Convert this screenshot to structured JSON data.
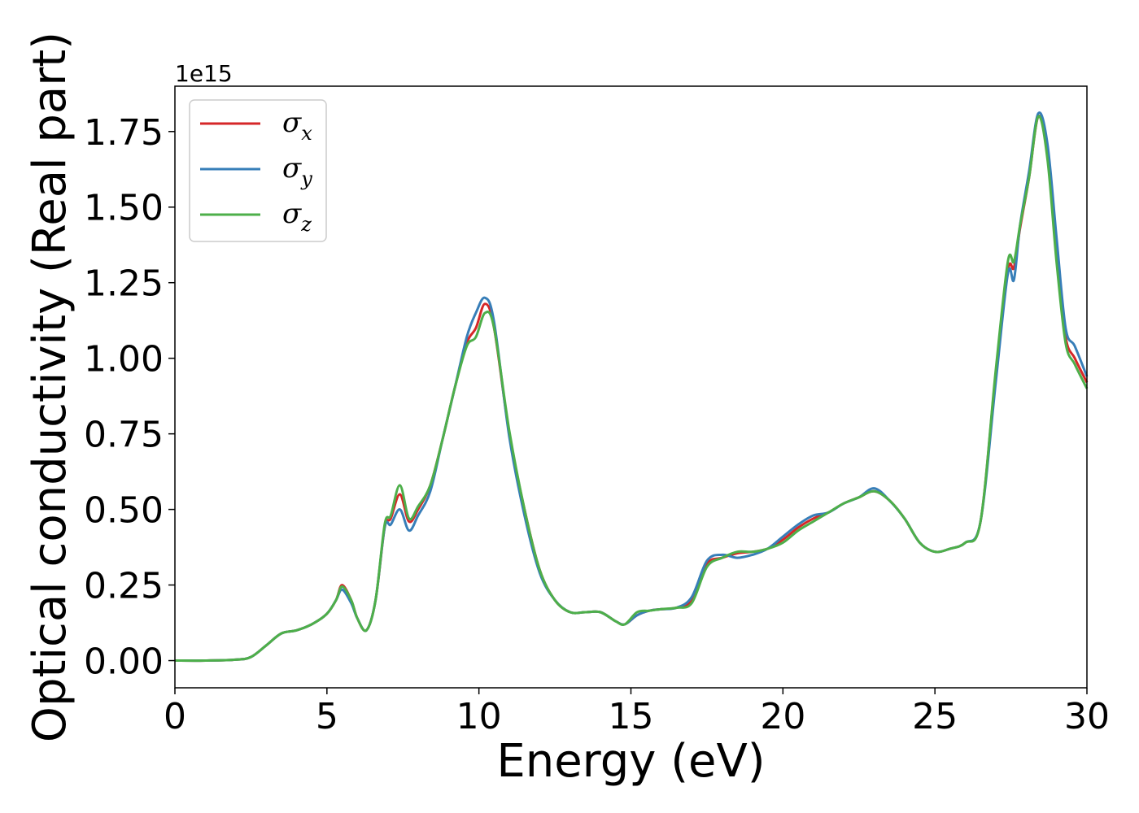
{
  "chart_data": {
    "type": "line",
    "title": "",
    "xlabel": "Energy (eV)",
    "ylabel": "Optical conductivity (Real part)",
    "y_offset_label": "1e15",
    "xlim": [
      0,
      30
    ],
    "ylim": [
      -0.09,
      1.9
    ],
    "x_ticks": [
      0,
      5,
      10,
      15,
      20,
      25,
      30
    ],
    "x_tick_labels": [
      "0",
      "5",
      "10",
      "15",
      "20",
      "25",
      "30"
    ],
    "y_ticks": [
      0.0,
      0.25,
      0.5,
      0.75,
      1.0,
      1.25,
      1.5,
      1.75
    ],
    "y_tick_labels": [
      "0.00",
      "0.25",
      "0.50",
      "0.75",
      "1.00",
      "1.25",
      "1.50",
      "1.75"
    ],
    "grid": false,
    "legend_position": "top-left",
    "x": [
      0,
      1,
      2,
      2.5,
      3,
      3.5,
      4,
      4.5,
      5,
      5.3,
      5.5,
      5.8,
      6.0,
      6.3,
      6.6,
      6.9,
      7.1,
      7.4,
      7.7,
      8.0,
      8.4,
      8.8,
      9.2,
      9.6,
      9.9,
      10.2,
      10.5,
      11.0,
      11.5,
      12.0,
      12.5,
      13.0,
      13.5,
      14.0,
      14.5,
      14.8,
      15.2,
      15.6,
      16.0,
      16.5,
      17.0,
      17.5,
      18.0,
      18.5,
      19.0,
      19.5,
      20.0,
      20.5,
      21.0,
      21.5,
      22.0,
      22.5,
      23.0,
      23.5,
      24.0,
      24.5,
      25.0,
      25.5,
      26.0,
      26.5,
      27.0,
      27.4,
      27.6,
      27.8,
      28.1,
      28.4,
      28.7,
      29.0,
      29.3,
      29.6,
      30.0
    ],
    "series": [
      {
        "name": "σx",
        "label_main": "σ",
        "label_sub": "x",
        "color": "#d62728",
        "values": [
          0.0,
          0.0,
          0.003,
          0.012,
          0.05,
          0.09,
          0.1,
          0.12,
          0.155,
          0.2,
          0.25,
          0.2,
          0.14,
          0.1,
          0.2,
          0.44,
          0.47,
          0.55,
          0.46,
          0.5,
          0.58,
          0.73,
          0.9,
          1.05,
          1.1,
          1.18,
          1.1,
          0.75,
          0.5,
          0.3,
          0.2,
          0.16,
          0.16,
          0.16,
          0.13,
          0.12,
          0.15,
          0.165,
          0.17,
          0.175,
          0.2,
          0.32,
          0.34,
          0.355,
          0.36,
          0.37,
          0.4,
          0.44,
          0.47,
          0.49,
          0.52,
          0.54,
          0.56,
          0.53,
          0.47,
          0.39,
          0.36,
          0.37,
          0.39,
          0.46,
          0.95,
          1.29,
          1.3,
          1.43,
          1.6,
          1.8,
          1.68,
          1.35,
          1.07,
          1.0,
          0.92
        ]
      },
      {
        "name": "σy",
        "label_main": "σ",
        "label_sub": "y",
        "color": "#377eb8",
        "values": [
          0.0,
          0.0,
          0.003,
          0.012,
          0.05,
          0.09,
          0.1,
          0.12,
          0.155,
          0.2,
          0.235,
          0.19,
          0.14,
          0.1,
          0.2,
          0.44,
          0.45,
          0.5,
          0.43,
          0.48,
          0.56,
          0.73,
          0.9,
          1.07,
          1.15,
          1.2,
          1.12,
          0.74,
          0.48,
          0.29,
          0.2,
          0.16,
          0.16,
          0.16,
          0.13,
          0.12,
          0.15,
          0.165,
          0.17,
          0.175,
          0.21,
          0.33,
          0.35,
          0.34,
          0.35,
          0.37,
          0.41,
          0.45,
          0.48,
          0.49,
          0.52,
          0.54,
          0.57,
          0.53,
          0.47,
          0.39,
          0.36,
          0.37,
          0.39,
          0.46,
          0.92,
          1.28,
          1.26,
          1.44,
          1.62,
          1.81,
          1.71,
          1.4,
          1.1,
          1.04,
          0.94
        ]
      },
      {
        "name": "σz",
        "label_main": "σ",
        "label_sub": "z",
        "color": "#4daf4a",
        "values": [
          0.0,
          0.0,
          0.003,
          0.012,
          0.05,
          0.09,
          0.1,
          0.12,
          0.155,
          0.2,
          0.245,
          0.2,
          0.14,
          0.1,
          0.2,
          0.45,
          0.48,
          0.58,
          0.47,
          0.51,
          0.58,
          0.73,
          0.9,
          1.04,
          1.07,
          1.15,
          1.1,
          0.76,
          0.5,
          0.3,
          0.2,
          0.16,
          0.16,
          0.16,
          0.13,
          0.12,
          0.16,
          0.165,
          0.17,
          0.175,
          0.19,
          0.31,
          0.34,
          0.36,
          0.36,
          0.37,
          0.39,
          0.43,
          0.46,
          0.49,
          0.52,
          0.54,
          0.56,
          0.53,
          0.47,
          0.39,
          0.36,
          0.37,
          0.39,
          0.46,
          0.96,
          1.32,
          1.32,
          1.44,
          1.6,
          1.8,
          1.66,
          1.32,
          1.05,
          0.98,
          0.9
        ]
      }
    ]
  }
}
